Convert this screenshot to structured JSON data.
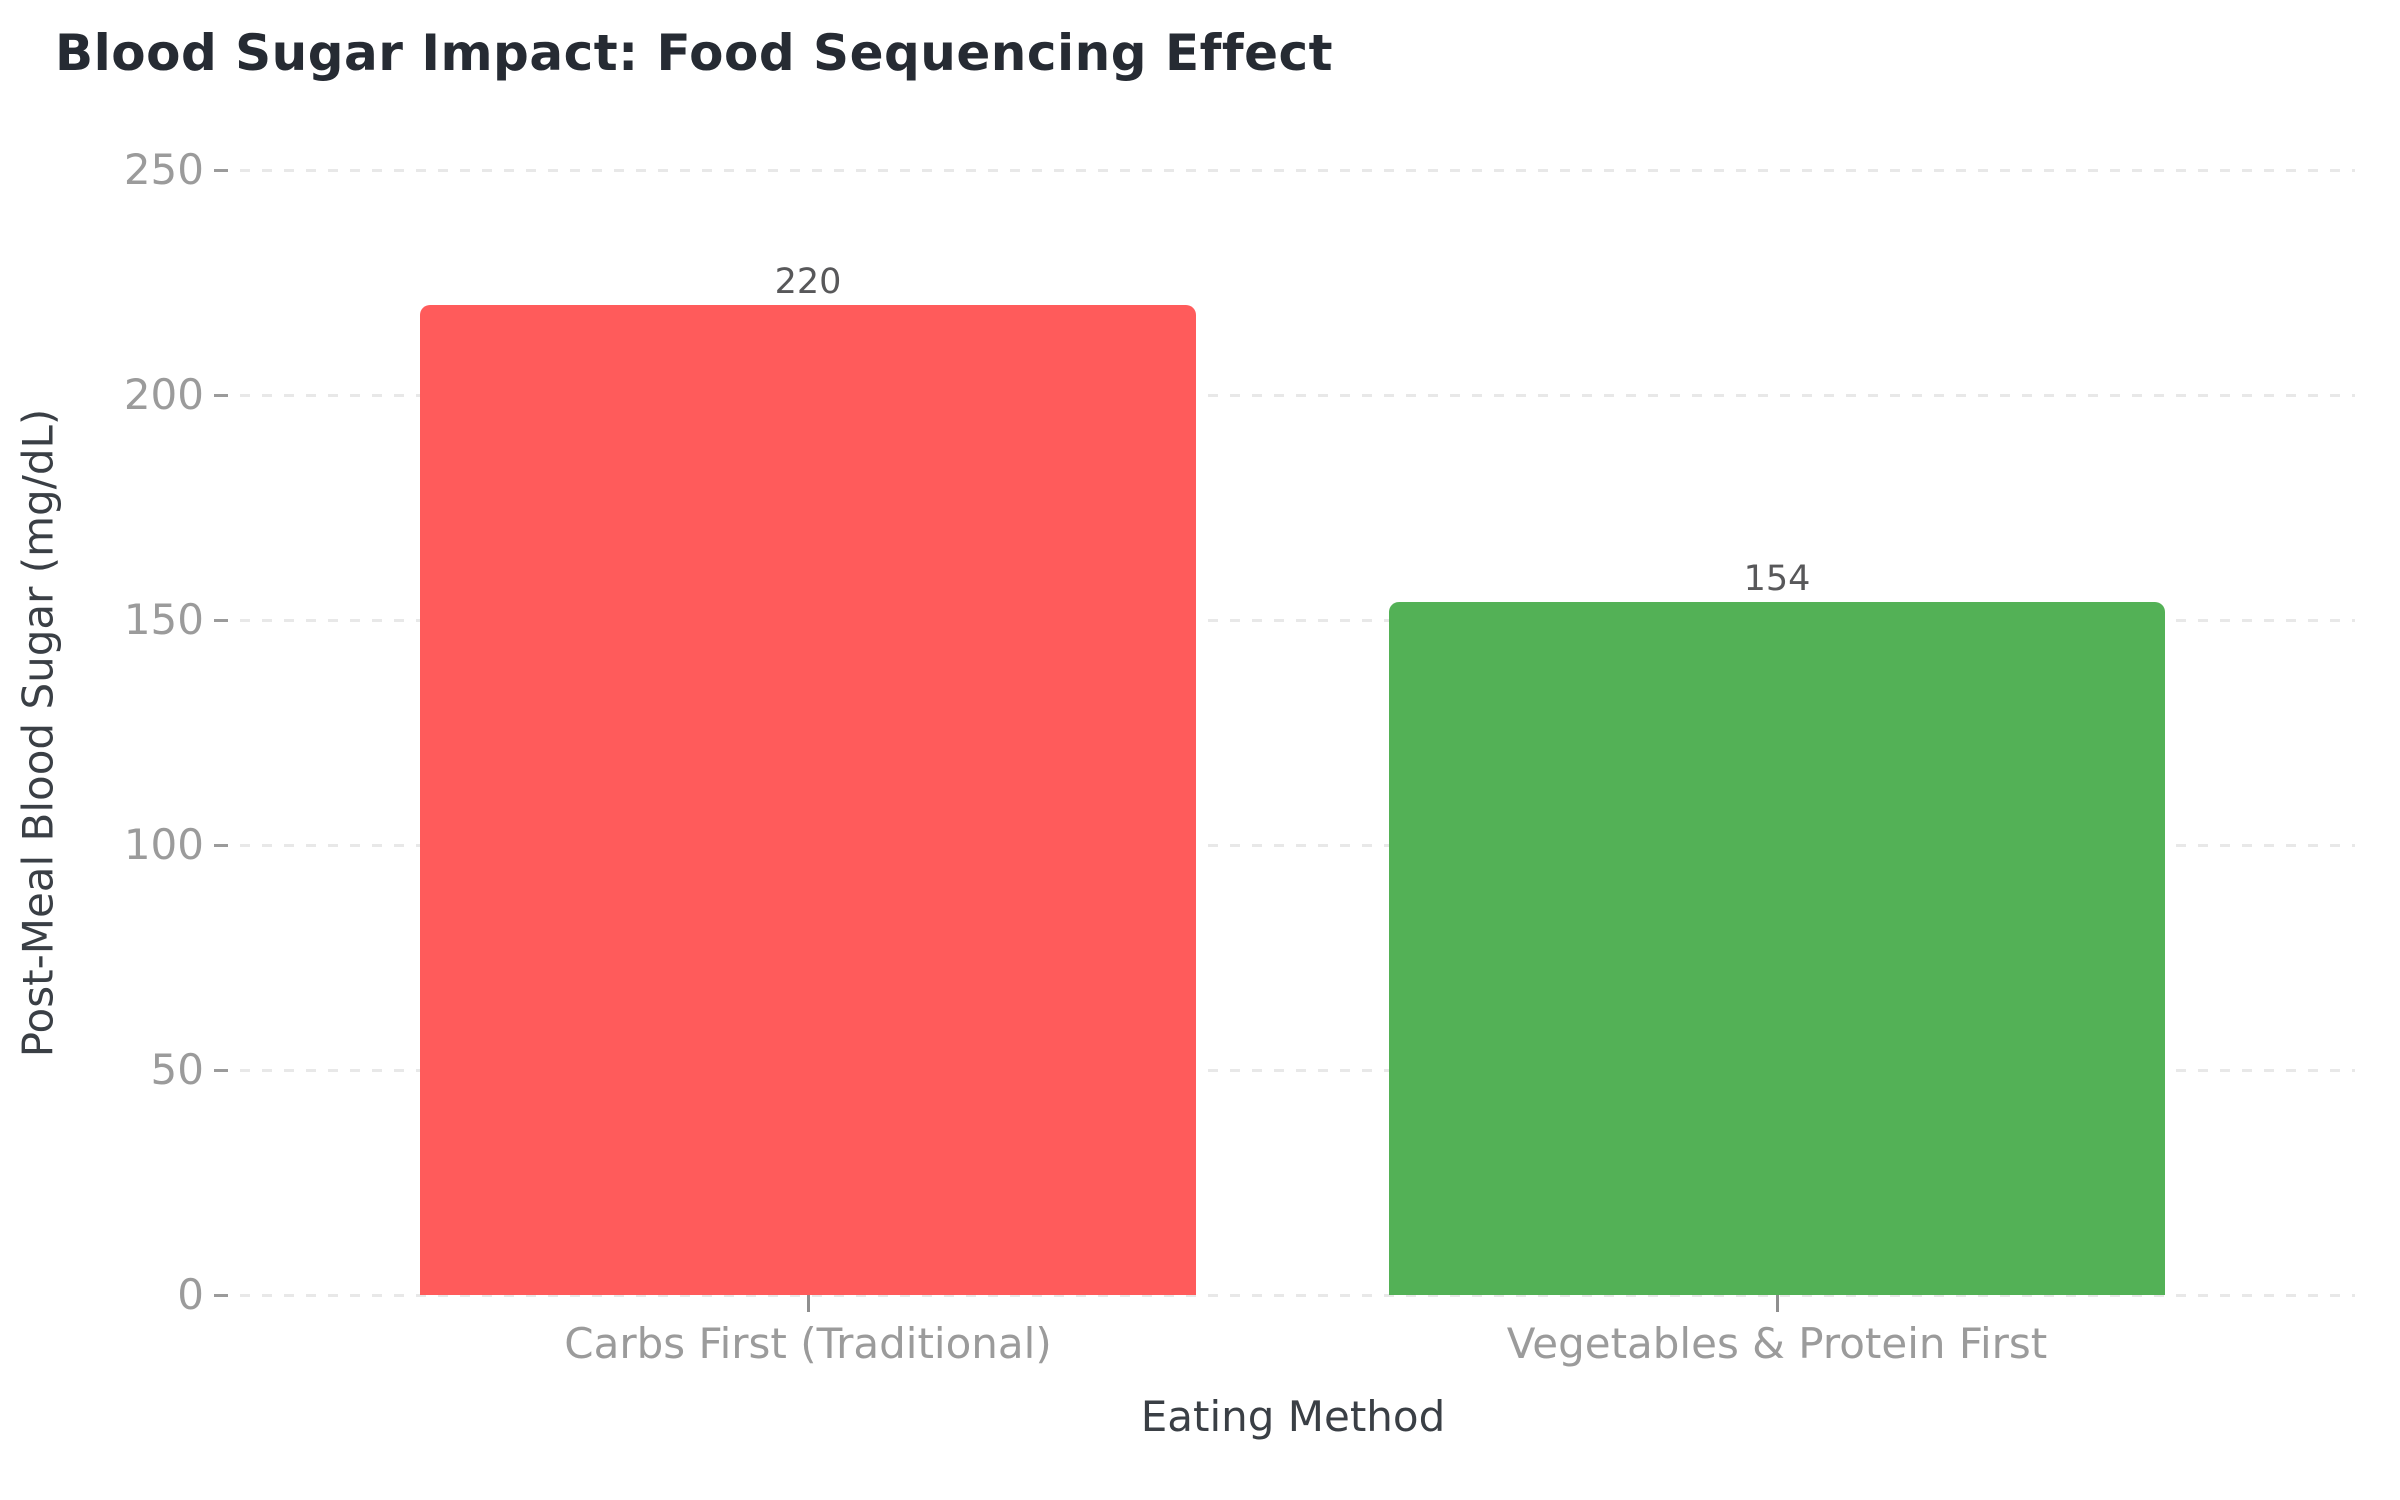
{
  "chart_data": {
    "type": "bar",
    "title": "Blood Sugar Impact: Food Sequencing Effect",
    "xlabel": "Eating Method",
    "ylabel": "Post-Meal Blood Sugar (mg/dL)",
    "categories": [
      "Carbs First (Traditional)",
      "Vegetables & Protein First"
    ],
    "values": [
      220,
      154
    ],
    "value_labels": [
      "220",
      "154"
    ],
    "bar_colors": [
      "#ff5b5b",
      "#53b156"
    ],
    "yticks": [
      0,
      50,
      100,
      150,
      200,
      250
    ],
    "ylim": [
      0,
      250
    ],
    "grid": "horizontal dashed gridlines on white background",
    "legend_position": "none"
  },
  "colors": {
    "background": "#ffffff",
    "title_text": "#262b33",
    "axis_title_text": "#3a3f45",
    "tick_label_text": "#9b9b9b",
    "value_label_text": "#58585a",
    "gridline": "#e8e8e8",
    "bar_carbs_first": "#ff5b5b",
    "bar_vegetables_protein_first": "#53b156"
  }
}
